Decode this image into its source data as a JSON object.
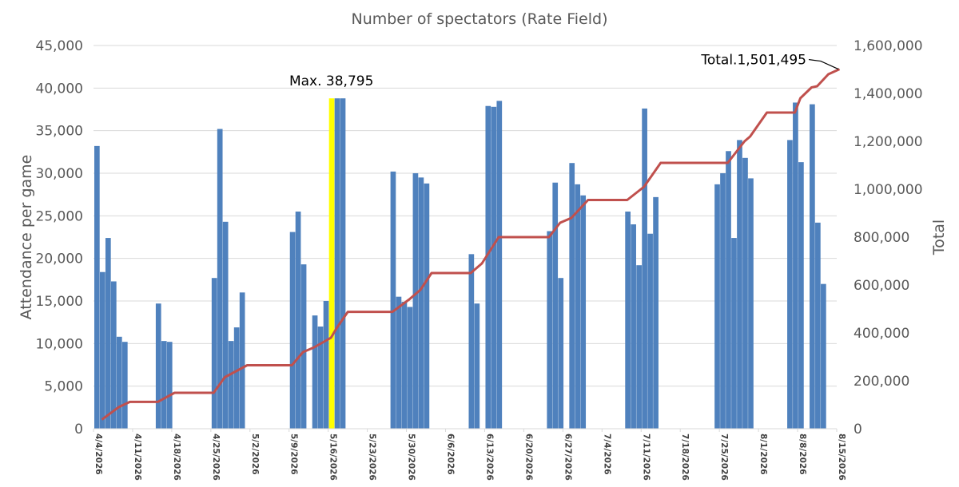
{
  "chart_data": {
    "type": "bar",
    "title": "Number of spectators (Rate Field)",
    "ylabel": "Attendance per game",
    "y2label": "Total",
    "ylim": [
      0,
      45000
    ],
    "y2lim": [
      0,
      1600000
    ],
    "yticks": [
      "0",
      "5,000",
      "10,000",
      "15,000",
      "20,000",
      "25,000",
      "30,000",
      "35,000",
      "40,000",
      "45,000"
    ],
    "y2ticks": [
      "0",
      "200,000",
      "400,000",
      "600,000",
      "800,000",
      "1,000,000",
      "1,200,000",
      "1,400,000",
      "1,600,000"
    ],
    "xlim": [
      "2026-04-04",
      "2026-08-15"
    ],
    "xticks": [
      "4/4/2026",
      "4/11/2026",
      "4/18/2026",
      "4/25/2026",
      "5/2/2026",
      "5/9/2026",
      "5/16/2026",
      "5/23/2026",
      "5/30/2026",
      "6/6/2026",
      "6/13/2026",
      "6/20/2026",
      "6/27/2026",
      "7/4/2026",
      "7/11/2026",
      "7/18/2026",
      "7/25/2026",
      "8/1/2026",
      "8/8/2026",
      "8/15/2026"
    ],
    "grid": true,
    "colors": {
      "bars": "#4f81bd",
      "highlight": "#ffff00",
      "line": "#c0504d",
      "grid": "#d9d9d9",
      "text": "#595959"
    },
    "series": [
      {
        "type": "bar",
        "axis": "left",
        "points": [
          [
            "2026-04-04",
            33200
          ],
          [
            "2026-04-05",
            18400
          ],
          [
            "2026-04-06",
            22400
          ],
          [
            "2026-04-07",
            17300
          ],
          [
            "2026-04-08",
            10800
          ],
          [
            "2026-04-09",
            10200
          ],
          [
            "2026-04-15",
            14700
          ],
          [
            "2026-04-16",
            10300
          ],
          [
            "2026-04-17",
            10200
          ],
          [
            "2026-04-25",
            17700
          ],
          [
            "2026-04-26",
            35200
          ],
          [
            "2026-04-27",
            24300
          ],
          [
            "2026-04-28",
            10300
          ],
          [
            "2026-04-29",
            11900
          ],
          [
            "2026-04-30",
            16000
          ],
          [
            "2026-05-09",
            23100
          ],
          [
            "2026-05-10",
            25500
          ],
          [
            "2026-05-11",
            19300
          ],
          [
            "2026-05-13",
            13300
          ],
          [
            "2026-05-14",
            12000
          ],
          [
            "2026-05-15",
            15000
          ],
          [
            "2026-05-16",
            38795
          ],
          [
            "2026-05-17",
            38795
          ],
          [
            "2026-05-18",
            38795
          ],
          [
            "2026-05-27",
            30200
          ],
          [
            "2026-05-28",
            15500
          ],
          [
            "2026-05-29",
            14900
          ],
          [
            "2026-05-30",
            14300
          ],
          [
            "2026-05-31",
            30000
          ],
          [
            "2026-06-01",
            29500
          ],
          [
            "2026-06-02",
            28800
          ],
          [
            "2026-06-10",
            20500
          ],
          [
            "2026-06-11",
            14700
          ],
          [
            "2026-06-13",
            37900
          ],
          [
            "2026-06-14",
            37800
          ],
          [
            "2026-06-15",
            38500
          ],
          [
            "2026-06-24",
            23200
          ],
          [
            "2026-06-25",
            28900
          ],
          [
            "2026-06-26",
            17700
          ],
          [
            "2026-06-28",
            31200
          ],
          [
            "2026-06-29",
            28700
          ],
          [
            "2026-06-30",
            27400
          ],
          [
            "2026-07-08",
            25500
          ],
          [
            "2026-07-09",
            24000
          ],
          [
            "2026-07-10",
            19200
          ],
          [
            "2026-07-11",
            37600
          ],
          [
            "2026-07-12",
            22900
          ],
          [
            "2026-07-13",
            27200
          ],
          [
            "2026-07-24",
            28700
          ],
          [
            "2026-07-25",
            30000
          ],
          [
            "2026-07-26",
            32600
          ],
          [
            "2026-07-27",
            22400
          ],
          [
            "2026-07-28",
            33900
          ],
          [
            "2026-07-29",
            31800
          ],
          [
            "2026-07-30",
            29400
          ],
          [
            "2026-08-06",
            33900
          ],
          [
            "2026-08-07",
            38300
          ],
          [
            "2026-08-08",
            31300
          ],
          [
            "2026-08-10",
            38100
          ],
          [
            "2026-08-11",
            24200
          ],
          [
            "2026-08-12",
            17000
          ]
        ]
      },
      {
        "type": "line",
        "axis": "right",
        "points": [
          [
            "2026-04-05",
            38000
          ],
          [
            "2026-04-08",
            90000
          ],
          [
            "2026-04-10",
            112000
          ],
          [
            "2026-04-15",
            112000
          ],
          [
            "2026-04-18",
            150000
          ],
          [
            "2026-04-25",
            150000
          ],
          [
            "2026-04-27",
            215000
          ],
          [
            "2026-04-29",
            240000
          ],
          [
            "2026-05-01",
            265000
          ],
          [
            "2026-05-09",
            265000
          ],
          [
            "2026-05-11",
            320000
          ],
          [
            "2026-05-13",
            340000
          ],
          [
            "2026-05-16",
            380000
          ],
          [
            "2026-05-17",
            420000
          ],
          [
            "2026-05-19",
            488000
          ],
          [
            "2026-05-27",
            488000
          ],
          [
            "2026-05-30",
            540000
          ],
          [
            "2026-06-01",
            580000
          ],
          [
            "2026-06-03",
            650000
          ],
          [
            "2026-06-10",
            650000
          ],
          [
            "2026-06-12",
            690000
          ],
          [
            "2026-06-15",
            800000
          ],
          [
            "2026-06-24",
            800000
          ],
          [
            "2026-06-26",
            860000
          ],
          [
            "2026-06-28",
            880000
          ],
          [
            "2026-07-01",
            955000
          ],
          [
            "2026-07-08",
            955000
          ],
          [
            "2026-07-11",
            1010000
          ],
          [
            "2026-07-14",
            1110000
          ],
          [
            "2026-07-26",
            1110000
          ],
          [
            "2026-07-29",
            1200000
          ],
          [
            "2026-07-30",
            1220000
          ],
          [
            "2026-08-02",
            1320000
          ],
          [
            "2026-08-07",
            1320000
          ],
          [
            "2026-08-08",
            1380000
          ],
          [
            "2026-08-10",
            1425000
          ],
          [
            "2026-08-11",
            1430000
          ],
          [
            "2026-08-13",
            1480000
          ],
          [
            "2026-08-15",
            1501495
          ]
        ]
      }
    ],
    "annotations": [
      {
        "text": "Max. 38,795",
        "x": "2026-05-16",
        "axis": "left",
        "y": 38795
      },
      {
        "text": "Total.1,501,495",
        "x": "2026-08-15",
        "axis": "right",
        "y": 1501495
      }
    ]
  }
}
